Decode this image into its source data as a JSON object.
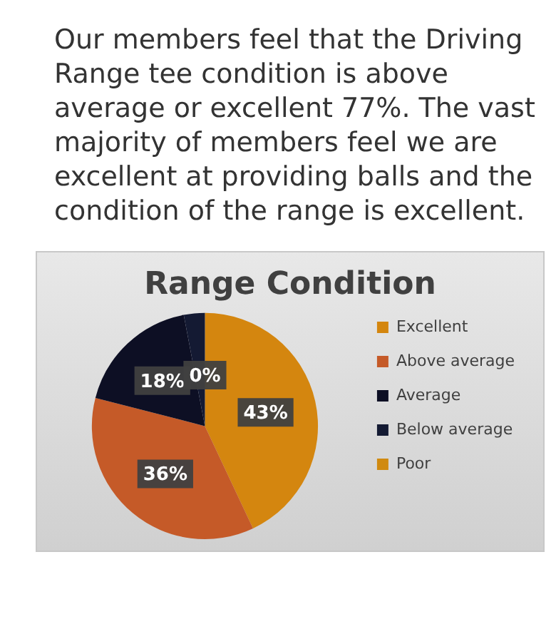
{
  "chart_data": {
    "type": "pie",
    "title": "Range Condition",
    "annotations": [
      "Our members feel that the Driving Range tee condition is above average or excellent 77%. The vast majority of members feel we are excellent at providing balls and the condition of the range is excellent."
    ],
    "categories": [
      "Excellent",
      "Above average",
      "Average",
      "Below average",
      "Poor"
    ],
    "values": [
      43,
      36,
      18,
      3,
      0
    ],
    "colors": [
      "#d4860f",
      "#c55a28",
      "#0d0f24",
      "#141a33",
      "#d08a10"
    ],
    "value_labels": [
      "43%",
      "36%",
      "18%",
      null,
      "0%"
    ],
    "legend": "right"
  }
}
